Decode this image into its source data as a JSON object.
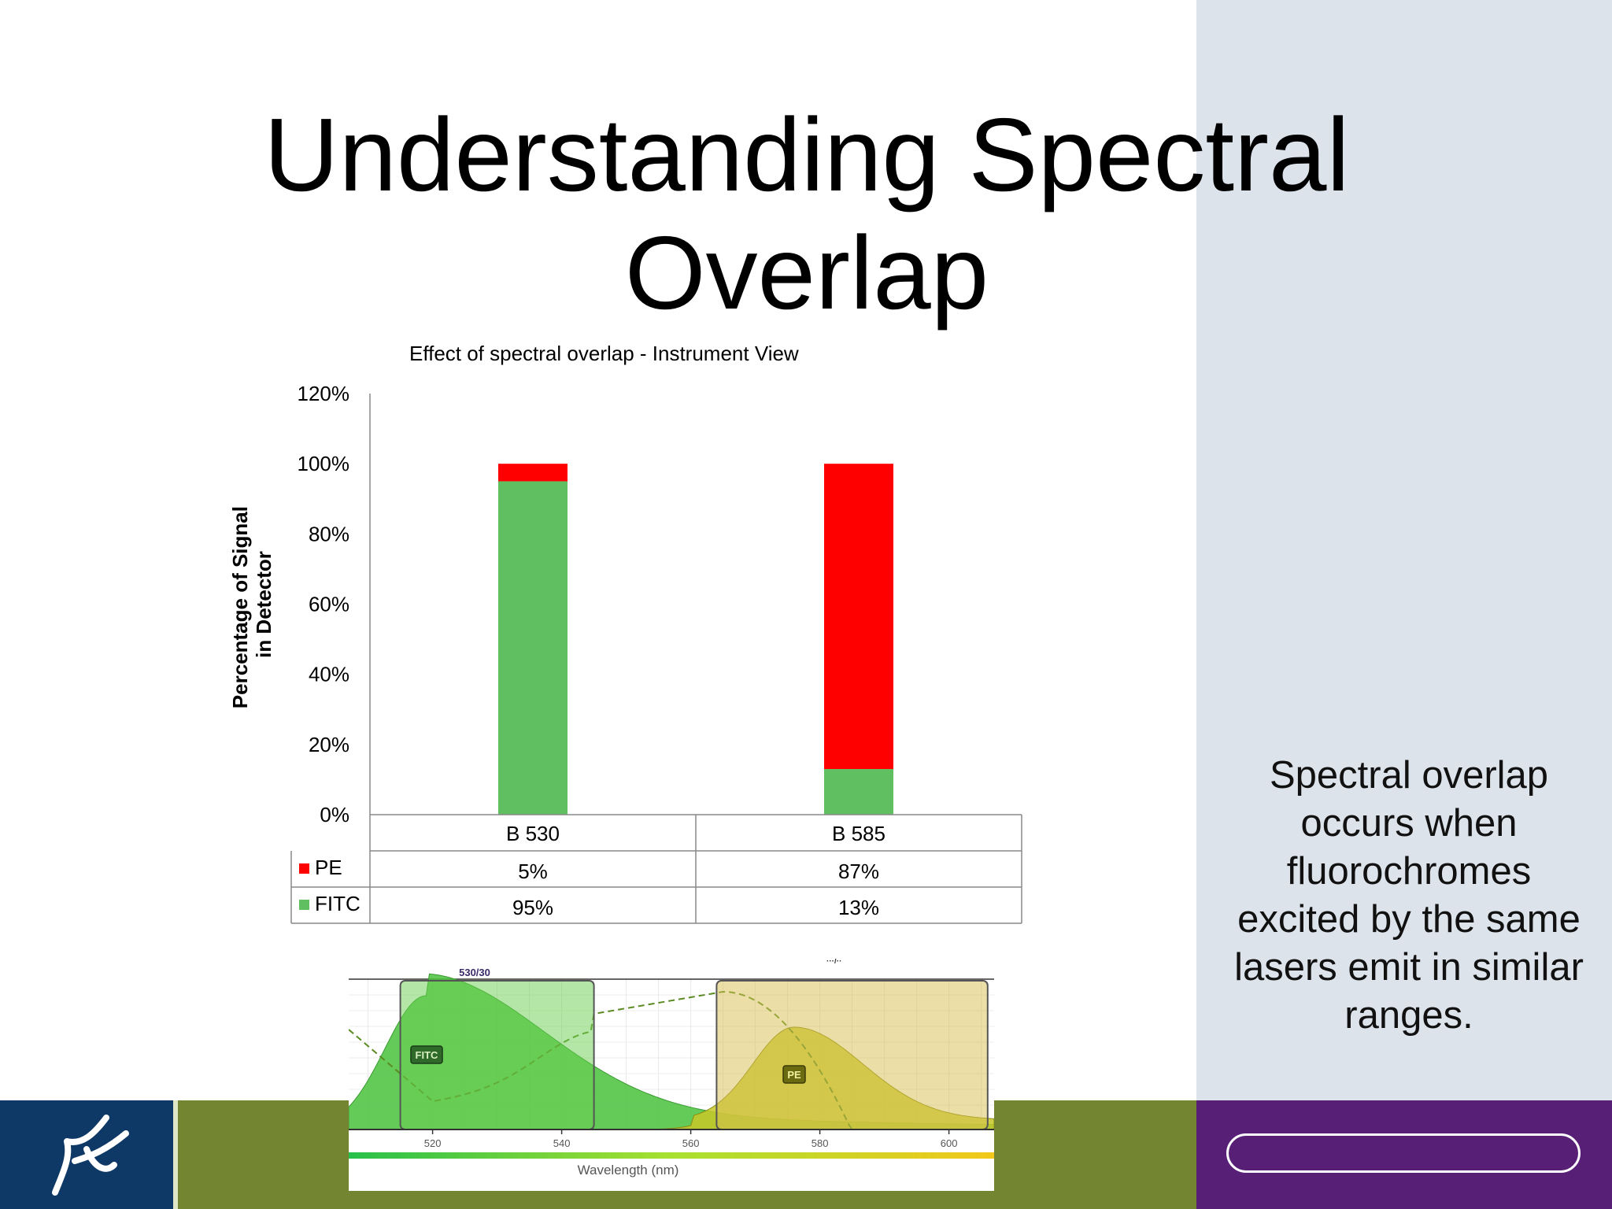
{
  "slide": {
    "title": "Understanding Spectral Overlap",
    "side_note": "Spectral overlap occurs when fluorochromes excited by the same lasers emit in similar ranges."
  },
  "colors": {
    "PE": "#ff0000",
    "FITC": "#60bf60",
    "right_panel": "#dde3ea",
    "footer_navy": "#0e3865",
    "footer_olive": "#748532",
    "footer_purple": "#571f75"
  },
  "chart_data": {
    "type": "bar",
    "stacked": true,
    "title": "Effect of spectral overlap - Instrument View",
    "ylabel": "Percentage of Signal in Detector",
    "ylim": [
      0,
      120
    ],
    "yticks": [
      "0%",
      "20%",
      "40%",
      "60%",
      "80%",
      "100%",
      "120%"
    ],
    "categories": [
      "B 530",
      "B 585"
    ],
    "series": [
      {
        "name": "FITC",
        "values": [
          95,
          13
        ],
        "labels": [
          "95%",
          "13%"
        ]
      },
      {
        "name": "PE",
        "values": [
          5,
          87
        ],
        "labels": [
          "5%",
          "87%"
        ]
      }
    ],
    "grid": false,
    "legend": "data-table"
  },
  "spectrum": {
    "filters": [
      "530/30"
    ],
    "dye_labels": [
      "FITC",
      "PE"
    ],
    "x_ticks": [
      "520",
      "540",
      "560",
      "580",
      "600"
    ],
    "xlabel": "Wavelength (nm)",
    "xlim": [
      507,
      607
    ],
    "filter_bands": [
      [
        515,
        545
      ],
      [
        564,
        606
      ]
    ]
  },
  "icons": {
    "logo": "cell-logo-icon"
  }
}
